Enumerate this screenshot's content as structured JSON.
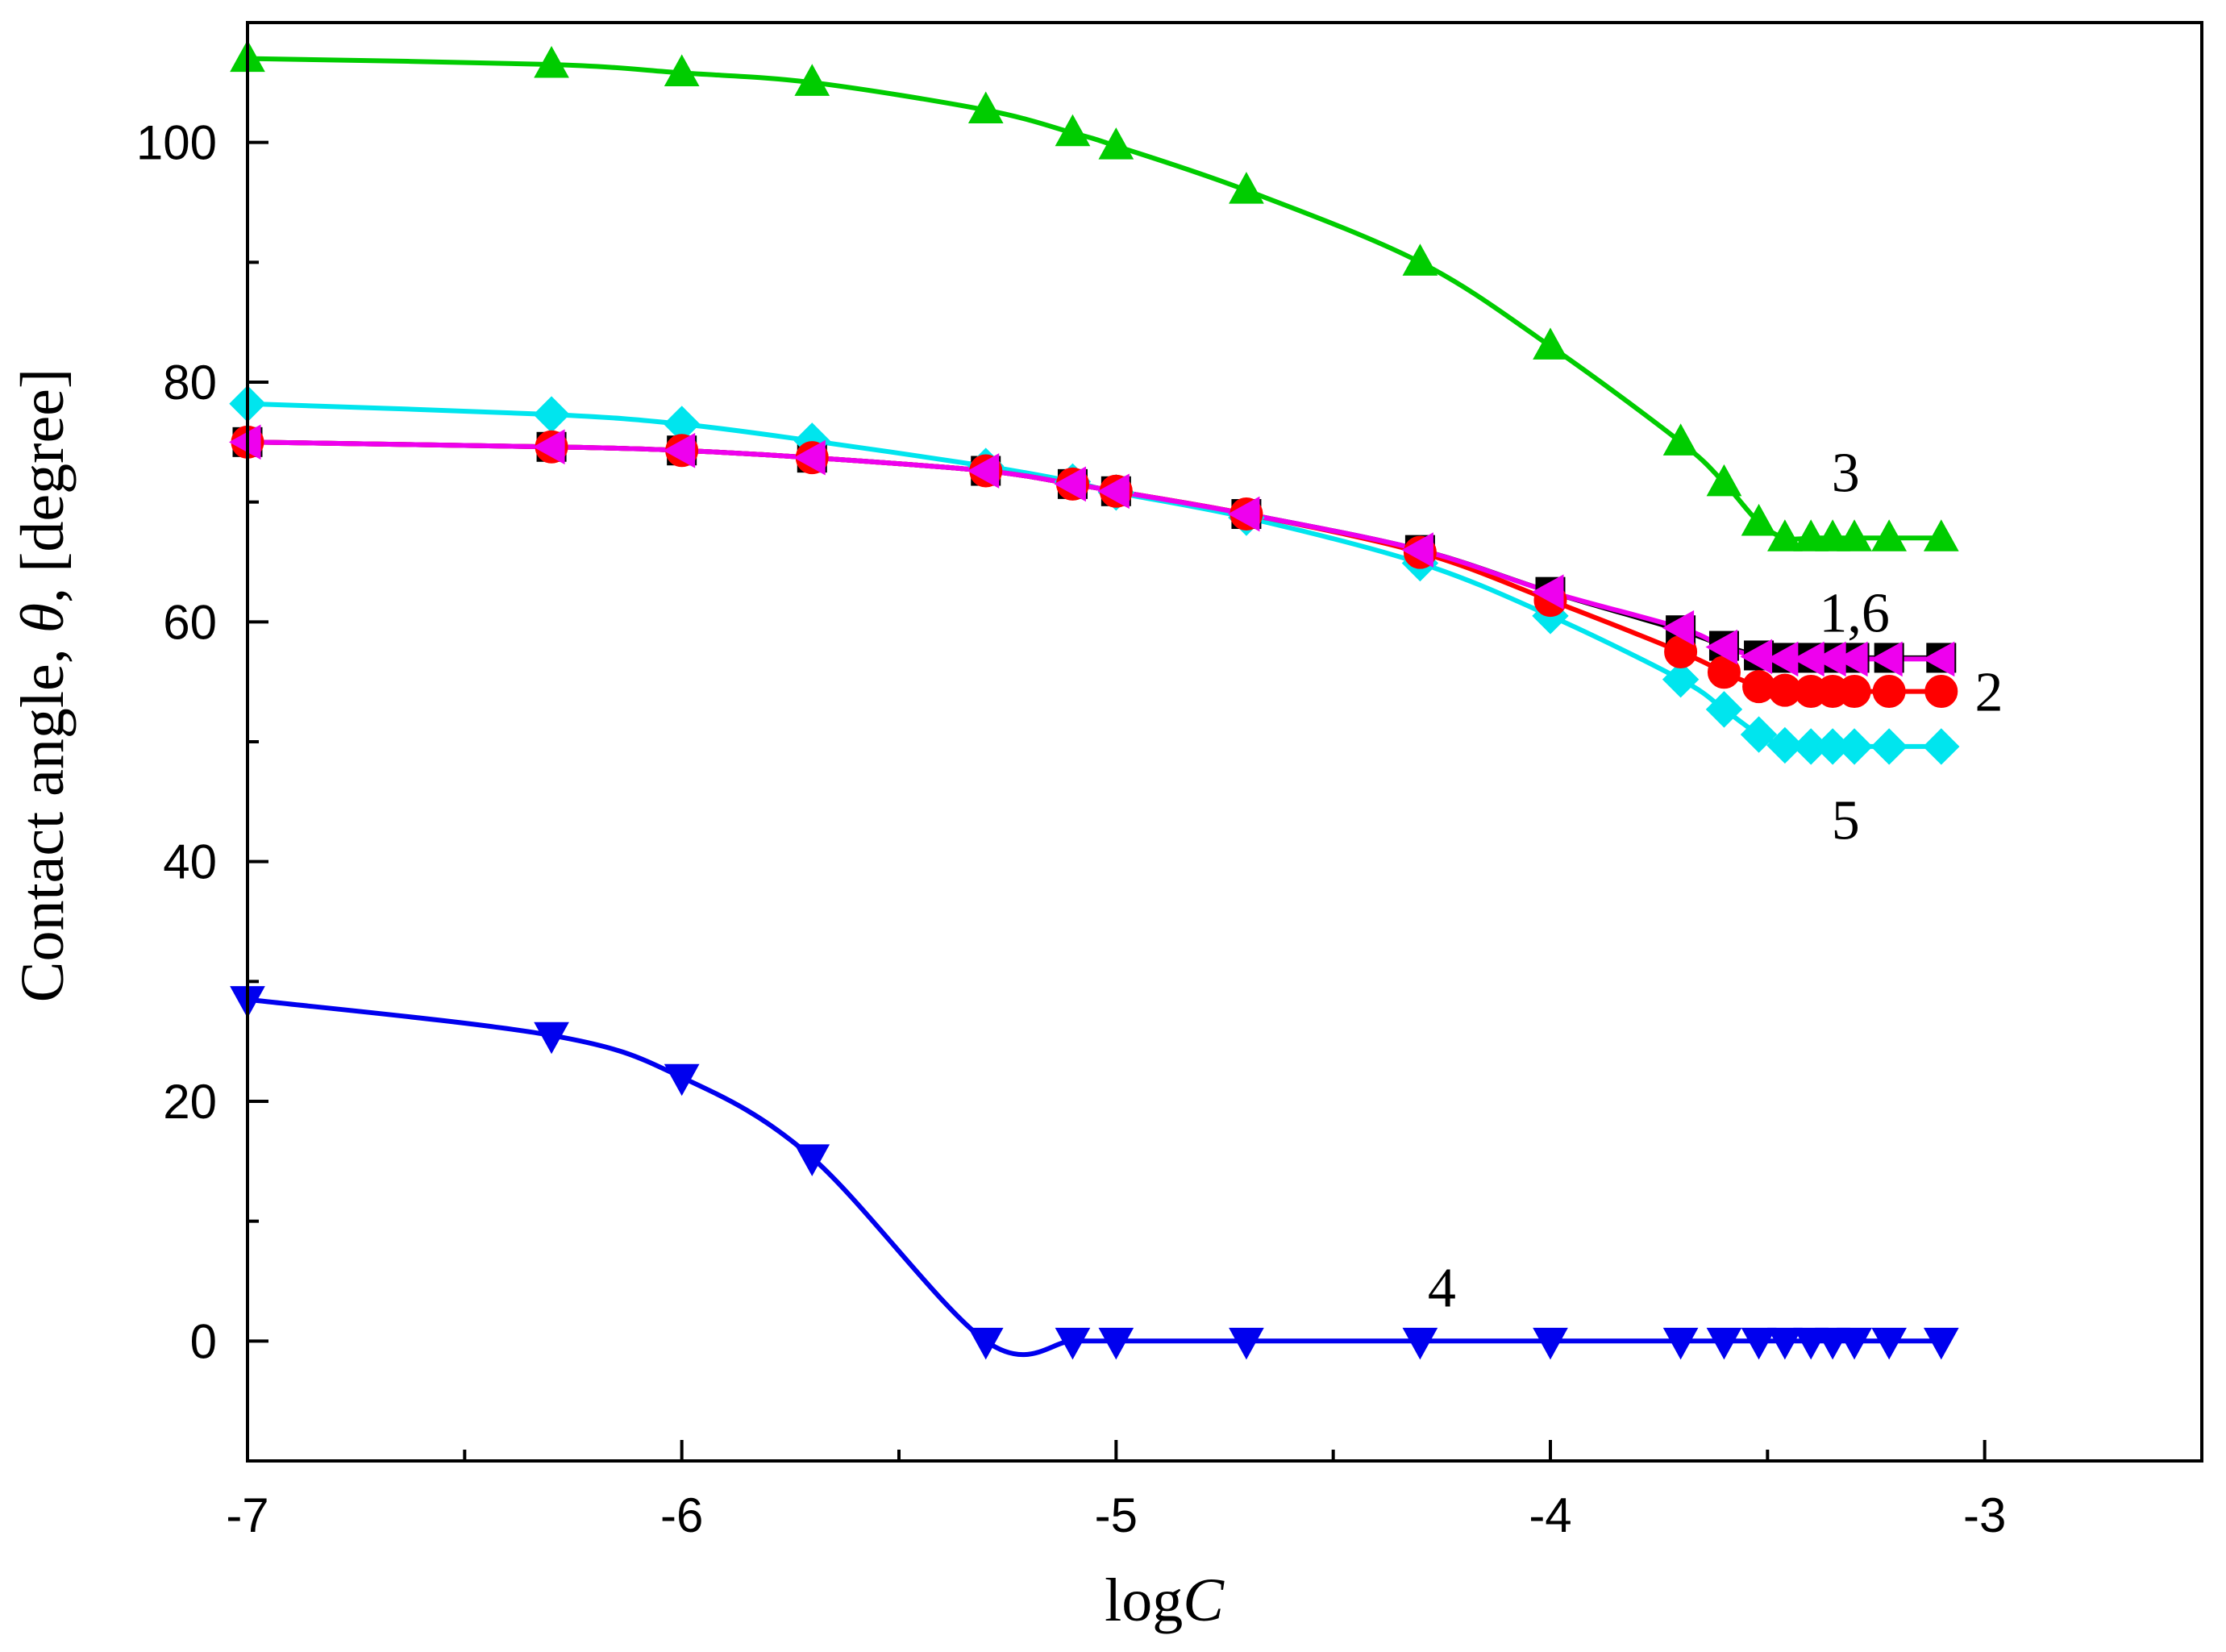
{
  "chart_data": {
    "type": "line",
    "title": "",
    "xlabel_plain": "log",
    "xlabel_italic": "C",
    "ylabel_plain_1": "Contact angle, ",
    "ylabel_italic": "θ",
    "ylabel_plain_2": ", [degree]",
    "xlim": [
      -7,
      -2.5
    ],
    "ylim": [
      -10,
      110
    ],
    "x_ticks": [
      -7,
      -6,
      -5,
      -4,
      -3
    ],
    "x_tick_labels": [
      "-7",
      "-6",
      "-5",
      "-4",
      "-3"
    ],
    "y_ticks": [
      0,
      20,
      40,
      60,
      80,
      100
    ],
    "y_tick_labels": [
      "0",
      "20",
      "40",
      "60",
      "80",
      "100"
    ],
    "series": [
      {
        "name": "1",
        "color": "#000000",
        "marker": "square",
        "x": [
          -7,
          -6.3,
          -6,
          -5.7,
          -5.3,
          -5.1,
          -5,
          -4.7,
          -4.3,
          -4,
          -3.7,
          -3.6,
          -3.52,
          -3.46,
          -3.4,
          -3.35,
          -3.3,
          -3.22,
          -3.1
        ],
        "y": [
          75,
          74.6,
          74.3,
          73.7,
          72.6,
          71.5,
          70.9,
          69,
          66,
          62.5,
          59.3,
          58,
          57.2,
          57,
          57,
          57,
          57,
          57,
          57
        ]
      },
      {
        "name": "2",
        "color": "#ff0000",
        "marker": "circle",
        "x": [
          -7,
          -6.3,
          -6,
          -5.7,
          -5.3,
          -5.1,
          -5,
          -4.7,
          -4.3,
          -4,
          -3.7,
          -3.6,
          -3.52,
          -3.46,
          -3.4,
          -3.35,
          -3.3,
          -3.22,
          -3.1
        ],
        "y": [
          75,
          74.6,
          74.3,
          73.7,
          72.6,
          71.5,
          70.9,
          69,
          65.8,
          61.8,
          57.5,
          55.8,
          54.6,
          54.3,
          54.2,
          54.2,
          54.2,
          54.2,
          54.2
        ]
      },
      {
        "name": "3",
        "color": "#00cc00",
        "marker": "triangle-up",
        "x": [
          -7,
          -6.3,
          -6,
          -5.7,
          -5.3,
          -5.1,
          -5,
          -4.7,
          -4.3,
          -4,
          -3.7,
          -3.6,
          -3.52,
          -3.46,
          -3.4,
          -3.35,
          -3.3,
          -3.22,
          -3.1
        ],
        "y": [
          107,
          106.5,
          105.8,
          105,
          102.7,
          100.8,
          99.7,
          96,
          90,
          83,
          75,
          71.6,
          68.3,
          67,
          67,
          67,
          67,
          67,
          67
        ]
      },
      {
        "name": "4",
        "color": "#0000ee",
        "marker": "triangle-down",
        "x": [
          -7,
          -6.3,
          -6,
          -5.7,
          -5.3,
          -5.1,
          -5,
          -4.7,
          -4.3,
          -4,
          -3.7,
          -3.6,
          -3.52,
          -3.46,
          -3.4,
          -3.35,
          -3.3,
          -3.22,
          -3.1
        ],
        "y": [
          28.5,
          25.5,
          22,
          15.3,
          0,
          0,
          0,
          0,
          0,
          0,
          0,
          0,
          0,
          0,
          0,
          0,
          0,
          0,
          0
        ]
      },
      {
        "name": "5",
        "color": "#00e5ee",
        "marker": "diamond",
        "x": [
          -7,
          -6.3,
          -6,
          -5.7,
          -5.3,
          -5.1,
          -5,
          -4.7,
          -4.3,
          -4,
          -3.7,
          -3.6,
          -3.52,
          -3.46,
          -3.4,
          -3.35,
          -3.3,
          -3.22,
          -3.1
        ],
        "y": [
          78.2,
          77.3,
          76.5,
          75.1,
          73,
          71.7,
          70.8,
          68.7,
          64.9,
          60.5,
          55.2,
          52.7,
          50.6,
          49.7,
          49.6,
          49.6,
          49.6,
          49.6,
          49.6
        ]
      },
      {
        "name": "6",
        "color": "#ee00ee",
        "marker": "triangle-left",
        "x": [
          -7,
          -6.3,
          -6,
          -5.7,
          -5.3,
          -5.1,
          -5,
          -4.7,
          -4.3,
          -4,
          -3.7,
          -3.6,
          -3.52,
          -3.46,
          -3.4,
          -3.35,
          -3.3,
          -3.22,
          -3.1
        ],
        "y": [
          75,
          74.6,
          74.3,
          73.7,
          72.6,
          71.5,
          70.9,
          69,
          66,
          62.5,
          59.5,
          57.9,
          57.1,
          56.9,
          56.9,
          56.9,
          56.9,
          56.9,
          56.9
        ]
      }
    ],
    "annotations": [
      {
        "text": "3",
        "x": -3.32,
        "y": 72.5
      },
      {
        "text": "1,6",
        "x": -3.3,
        "y": 60.8
      },
      {
        "text": "2",
        "x": -2.99,
        "y": 54.2
      },
      {
        "text": "5",
        "x": -3.32,
        "y": 43.5
      },
      {
        "text": "4",
        "x": -4.25,
        "y": 4.5
      }
    ]
  }
}
